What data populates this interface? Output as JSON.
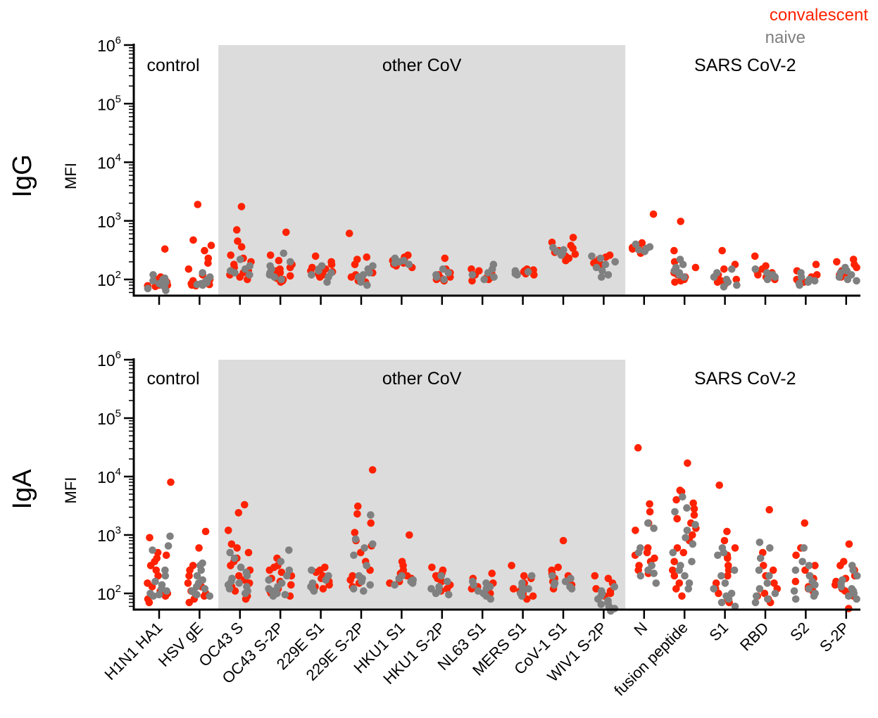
{
  "legend": {
    "placement": "top-right",
    "items": [
      {
        "label": "convalescent",
        "color": "#FF2200"
      },
      {
        "label": "naive",
        "color": "#808080"
      }
    ]
  },
  "colors": {
    "convalescent": "#FF2200",
    "naive": "#808080",
    "shade": "#DCDCDC",
    "axis": "#000000"
  },
  "chart_data": [
    {
      "type": "scatter",
      "panel_label": "IgG",
      "ylabel": "MFI",
      "yscale": "log",
      "ylim": [
        50,
        1000000
      ],
      "ytick_base": "10",
      "ytick_exponents": [
        "2",
        "3",
        "4",
        "5",
        "6"
      ],
      "regions": [
        {
          "label": "control",
          "categories": [
            "H1N1 HA1",
            "HSV gE"
          ],
          "shaded": false
        },
        {
          "label": "other CoV",
          "categories": [
            "OC43 S",
            "OC43 S-2P",
            "229E S1",
            "229E S-2P",
            "HKU1 S1",
            "HKU1 S-2P",
            "NL63 S1",
            "MERS S1",
            "CoV-1 S1",
            "WIV1 S-2P"
          ],
          "shaded": true
        },
        {
          "label": "SARS CoV-2",
          "categories": [
            "N",
            "fusion peptide",
            "S1",
            "RBD",
            "S2",
            "S-2P"
          ],
          "shaded": false
        }
      ],
      "categories": [
        "H1N1 HA1",
        "HSV gE",
        "OC43 S",
        "OC43 S-2P",
        "229E S1",
        "229E S-2P",
        "HKU1 S1",
        "HKU1 S-2P",
        "NL63 S1",
        "MERS S1",
        "CoV-1 S1",
        "WIV1 S-2P",
        "N",
        "fusion peptide",
        "S1",
        "RBD",
        "S2",
        "S-2P"
      ],
      "series": [
        {
          "name": "convalescent",
          "values": [
            [
              330,
              110,
              100,
              95,
              90,
              88,
              85,
              82,
              80,
              78,
              92,
              86,
              84,
              80,
              76
            ],
            [
              1900,
              470,
              380,
              310,
              230,
              190,
              150,
              120,
              100,
              95,
              90,
              85,
              82,
              80,
              78
            ],
            [
              1750,
              700,
              450,
              360,
              260,
              230,
              200,
              180,
              160,
              150,
              140,
              130,
              120,
              110,
              100
            ],
            [
              640,
              260,
              210,
              180,
              160,
              150,
              140,
              130,
              120,
              115,
              110,
              105,
              100,
              95,
              90
            ],
            [
              250,
              200,
              180,
              160,
              150,
              140,
              135,
              130,
              125,
              120,
              115,
              110
            ],
            [
              610,
              240,
              220,
              180,
              150,
              130,
              120,
              110,
              100,
              95,
              90
            ],
            [
              260,
              240,
              220,
              210,
              200,
              190,
              180,
              170,
              160
            ],
            [
              230,
              150,
              130,
              120,
              110,
              105,
              100,
              95
            ],
            [
              150,
              140,
              130,
              120,
              110,
              105,
              100,
              95
            ],
            [
              150,
              145,
              140,
              135,
              130,
              125,
              120
            ],
            [
              520,
              430,
              380,
              340,
              310,
              290,
              270,
              250,
              230,
              210
            ],
            [
              260,
              240,
              220,
              200,
              190,
              180
            ],
            [
              1300,
              420,
              380,
              350,
              330,
              320,
              300,
              280
            ],
            [
              980,
              310,
              200,
              160,
              130,
              120,
              110,
              100,
              95,
              90
            ],
            [
              310,
              180,
              150,
              120,
              105,
              100,
              95,
              90,
              85
            ],
            [
              250,
              170,
              150,
              140,
              130,
              120,
              110,
              100
            ],
            [
              180,
              140,
              120,
              110,
              100,
              95,
              90
            ],
            [
              220,
              200,
              180,
              160,
              140,
              130,
              120,
              110
            ]
          ]
        },
        {
          "name": "naive",
          "values": [
            [
              120,
              105,
              100,
              95,
              90,
              85,
              80,
              75,
              70,
              65
            ],
            [
              130,
              110,
              100,
              95,
              90,
              88,
              85,
              82,
              80
            ],
            [
              220,
              170,
              150,
              140,
              130,
              120
            ],
            [
              280,
              200,
              170,
              150,
              130,
              120,
              110,
              100
            ],
            [
              170,
              150,
              140,
              130,
              120,
              110,
              90
            ],
            [
              170,
              150,
              130,
              120,
              110,
              100,
              90,
              80
            ],
            [
              230,
              210,
              200,
              190,
              180
            ],
            [
              150,
              130,
              120,
              110,
              100
            ],
            [
              180,
              150,
              130,
              120,
              110,
              100
            ],
            [
              140,
              135,
              130,
              125,
              120
            ],
            [
              350,
              320,
              300,
              280,
              260
            ],
            [
              250,
              230,
              200,
              180,
              160,
              140,
              120,
              110
            ],
            [
              400,
              360,
              340,
              320,
              300
            ],
            [
              220,
              180,
              160,
              140,
              130,
              120,
              110
            ],
            [
              150,
              130,
              110,
              100,
              90,
              80,
              75
            ],
            [
              150,
              130,
              120,
              110,
              100
            ],
            [
              130,
              110,
              100,
              95,
              90,
              85,
              80
            ],
            [
              160,
              140,
              130,
              120,
              110,
              100,
              95
            ]
          ]
        }
      ]
    },
    {
      "type": "scatter",
      "panel_label": "IgA",
      "ylabel": "MFI",
      "yscale": "log",
      "ylim": [
        50,
        1000000
      ],
      "ytick_base": "10",
      "ytick_exponents": [
        "2",
        "3",
        "4",
        "5",
        "6"
      ],
      "regions": [
        {
          "label": "control",
          "categories": [
            "H1N1 HA1",
            "HSV gE"
          ],
          "shaded": false
        },
        {
          "label": "other CoV",
          "categories": [
            "OC43 S",
            "OC43 S-2P",
            "229E S1",
            "229E S-2P",
            "HKU1 S1",
            "HKU1 S-2P",
            "NL63 S1",
            "MERS S1",
            "CoV-1 S1",
            "WIV1 S-2P"
          ],
          "shaded": true
        },
        {
          "label": "SARS CoV-2",
          "categories": [
            "N",
            "fusion peptide",
            "S1",
            "RBD",
            "S2",
            "S-2P"
          ],
          "shaded": false
        }
      ],
      "categories": [
        "H1N1 HA1",
        "HSV gE",
        "OC43 S",
        "OC43 S-2P",
        "229E S1",
        "229E S-2P",
        "HKU1 S1",
        "HKU1 S-2P",
        "NL63 S1",
        "MERS S1",
        "CoV-1 S1",
        "WIV1 S-2P",
        "N",
        "fusion peptide",
        "S1",
        "RBD",
        "S2",
        "S-2P"
      ],
      "series": [
        {
          "name": "convalescent",
          "values": [
            [
              8000,
              900,
              500,
              450,
              400,
              350,
              300,
              250,
              200,
              150,
              130,
              110,
              100,
              90,
              80,
              70
            ],
            [
              1150,
              600,
              300,
              250,
              200,
              150,
              130,
              110,
              100,
              90,
              80,
              70
            ],
            [
              3300,
              2400,
              1200,
              700,
              600,
              500,
              400,
              350,
              300,
              250,
              200,
              170,
              150,
              130,
              110,
              90,
              80
            ],
            [
              400,
              300,
              280,
              250,
              230,
              200,
              180,
              160,
              140,
              120,
              110,
              100,
              90
            ],
            [
              280,
              250,
              230,
              200,
              180,
              160,
              140,
              130,
              120
            ],
            [
              13000,
              3100,
              2300,
              1600,
              1100,
              800,
              650,
              500,
              350,
              250,
              200,
              170,
              150,
              130
            ],
            [
              1000,
              350,
              300,
              250,
              220,
              200,
              180,
              160,
              150
            ],
            [
              280,
              250,
              220,
              200,
              180,
              160,
              140,
              120,
              110
            ],
            [
              220,
              180,
              150,
              130,
              120,
              110,
              100
            ],
            [
              300,
              200,
              180,
              150,
              120,
              110,
              100,
              90,
              80
            ],
            [
              800,
              280,
              250,
              220,
              200,
              180,
              160,
              140,
              120
            ],
            [
              200,
              180,
              150,
              120,
              110,
              100,
              90
            ],
            [
              31000,
              3400,
              2500,
              1600,
              1200,
              600,
              500,
              450,
              400,
              350,
              300,
              250,
              220
            ],
            [
              17000,
              5800,
              5500,
              4000,
              3500,
              2800,
              2200,
              1900,
              1600,
              1300,
              1000,
              800,
              600,
              500,
              350,
              250,
              200,
              150,
              120,
              90
            ],
            [
              7100,
              1150,
              800,
              600,
              450,
              400,
              300,
              250,
              200,
              150,
              120,
              100,
              80,
              70
            ],
            [
              2700,
              500,
              300,
              250,
              200,
              150,
              120,
              100,
              90,
              80,
              70
            ],
            [
              1600,
              600,
              450,
              300,
              250,
              200,
              180,
              160,
              140,
              130,
              120,
              110
            ],
            [
              700,
              350,
              300,
              250,
              200,
              180,
              160,
              140,
              120,
              110,
              100,
              90,
              55
            ]
          ]
        },
        {
          "name": "naive",
          "values": [
            [
              950,
              650,
              550,
              250,
              200,
              160,
              140,
              120,
              110,
              100,
              95,
              90
            ],
            [
              330,
              300,
              250,
              200,
              170,
              150,
              130,
              120,
              110,
              100,
              95,
              90
            ],
            [
              500,
              400,
              280,
              230,
              200,
              180,
              160,
              150,
              140,
              130,
              120,
              110,
              100
            ],
            [
              550,
              350,
              250,
              200,
              170,
              150,
              130,
              120,
              110,
              100,
              95,
              90
            ],
            [
              250,
              200,
              170,
              150,
              130,
              120,
              110
            ],
            [
              2200,
              850,
              700,
              600,
              450,
              300,
              200,
              180,
              160,
              140,
              120,
              110
            ],
            [
              200,
              180,
              170,
              160,
              150,
              140
            ],
            [
              200,
              160,
              130,
              120,
              110,
              100,
              95
            ],
            [
              160,
              150,
              140,
              130,
              120,
              110,
              100,
              90,
              80
            ],
            [
              200,
              150,
              130,
              120,
              110,
              100,
              90
            ],
            [
              200,
              180,
              160,
              150,
              140,
              130,
              120
            ],
            [
              130,
              110,
              100,
              90,
              80,
              75,
              70,
              65,
              60,
              55,
              50
            ],
            [
              1600,
              1300,
              600,
              500,
              300,
              250,
              220,
              200,
              150
            ],
            [
              4500,
              2900,
              2500,
              1500,
              1200,
              900,
              700,
              500,
              350,
              300,
              250,
              200,
              150,
              120
            ],
            [
              600,
              500,
              450,
              250,
              200,
              150,
              120,
              100,
              90,
              80,
              70,
              60
            ],
            [
              750,
              600,
              400,
              250,
              200,
              150,
              120,
              100,
              90,
              80,
              70
            ],
            [
              600,
              350,
              300,
              250,
              200,
              160,
              140,
              120,
              110,
              100,
              90,
              80
            ],
            [
              300,
              250,
              200,
              170,
              150,
              130,
              120,
              110,
              100,
              90,
              80
            ]
          ]
        }
      ]
    }
  ]
}
